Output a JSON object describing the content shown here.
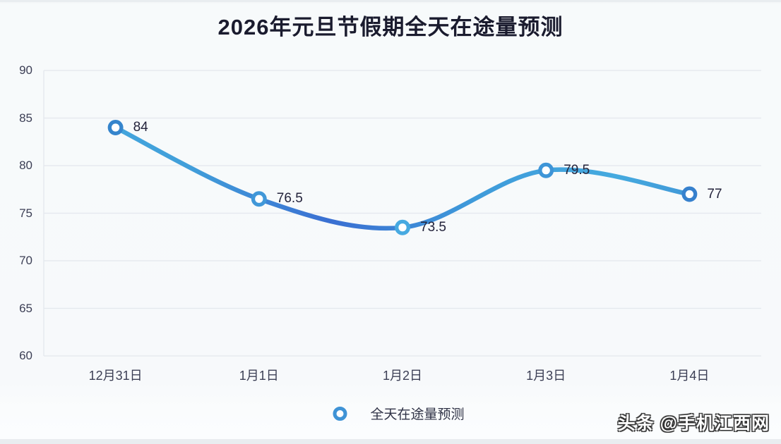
{
  "watermark": {
    "text": "头条 @手机江西网"
  },
  "chart_data": {
    "type": "line",
    "title": "2026年元旦节假期全天在途量预测",
    "categories": [
      "12月31日",
      "1月1日",
      "1月2日",
      "1月3日",
      "1月4日"
    ],
    "series": [
      {
        "name": "全天在途量预测",
        "values": [
          84,
          76.5,
          73.5,
          79.5,
          77
        ],
        "point_labels": [
          "84",
          "76.5",
          "73.5",
          "79.5",
          "77"
        ]
      }
    ],
    "ylim": [
      60,
      90
    ],
    "yticks": [
      60,
      65,
      70,
      75,
      80,
      85,
      90
    ],
    "smooth": true,
    "grid": true,
    "legend_position": "bottom",
    "legend_icon": "line-with-circle-marker-icon",
    "colors": {
      "line_gradient": [
        "#45aadf",
        "#419fda",
        "#3a6fd2",
        "#3f9bda",
        "#45aadf",
        "#3c86d0"
      ],
      "marker_gradient": [
        "#2e7bc6",
        "#3f93d6",
        "#47aae1",
        "#3c90d5",
        "#3377c8"
      ],
      "marker_fill": "#ffffff",
      "grid_line": "#e4e8ed",
      "axis_label": "#3c3f55",
      "data_label": "#23233b",
      "legend_text": "#2f3246",
      "title_color": "#1a1b2e",
      "background": "#f7f9fb"
    }
  }
}
